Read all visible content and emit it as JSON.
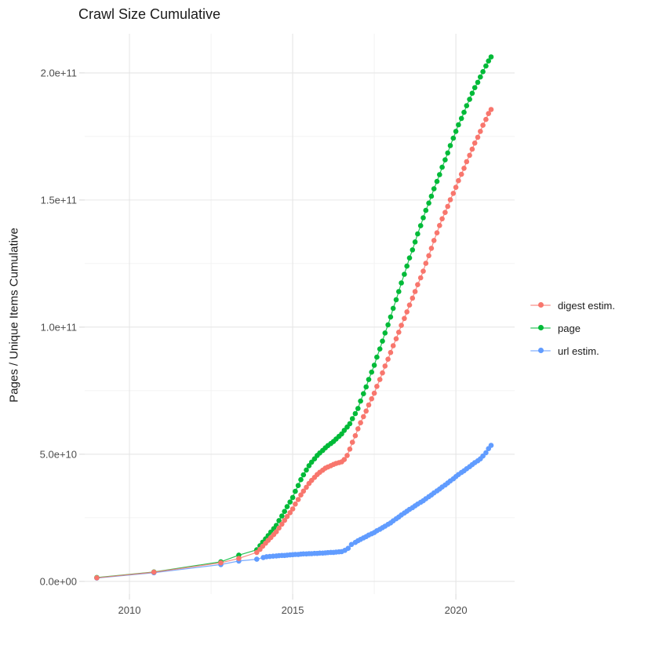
{
  "chart_data": {
    "type": "scatter",
    "title": "Crawl Size Cumulative",
    "xlabel": "",
    "ylabel": "Pages / Unique Items Cumulative",
    "legend_position": "right",
    "grid": true,
    "x_unit": "year",
    "value_scale": 1000000000.0,
    "xlim": [
      2008.63,
      2021.8
    ],
    "ylim": [
      -5,
      215.4
    ],
    "x_ticks": [
      {
        "value": 2010,
        "label": "2010"
      },
      {
        "value": 2015,
        "label": "2015"
      },
      {
        "value": 2020,
        "label": "2020"
      }
    ],
    "x_minor": [
      2012.5,
      2017.5
    ],
    "y_ticks": [
      {
        "value": 0,
        "label": "0.0e+00"
      },
      {
        "value": 50,
        "label": "5.0e+10"
      },
      {
        "value": 100,
        "label": "1.0e+11"
      },
      {
        "value": 150,
        "label": "1.5e+11"
      },
      {
        "value": 200,
        "label": "2.0e+11"
      }
    ],
    "y_minor": [
      25,
      75,
      125,
      175
    ],
    "series": [
      {
        "name": "digest estim.",
        "color": "#F8766D",
        "points": [
          [
            2009.0,
            1.4
          ],
          [
            2010.75,
            3.6
          ],
          [
            2012.8,
            7.3
          ],
          [
            2013.35,
            9.0
          ],
          [
            2013.9,
            11.4
          ],
          [
            2014.0,
            12.6
          ],
          [
            2014.08,
            13.8
          ],
          [
            2014.17,
            15.0
          ],
          [
            2014.25,
            16.1
          ],
          [
            2014.33,
            17.2
          ],
          [
            2014.42,
            18.4
          ],
          [
            2014.5,
            19.5
          ],
          [
            2014.58,
            21.0
          ],
          [
            2014.67,
            22.5
          ],
          [
            2014.75,
            24.0
          ],
          [
            2014.83,
            25.5
          ],
          [
            2014.92,
            27.0
          ],
          [
            2015.0,
            28.5
          ],
          [
            2015.08,
            30.4
          ],
          [
            2015.17,
            32.2
          ],
          [
            2015.25,
            34.0
          ],
          [
            2015.33,
            35.5
          ],
          [
            2015.42,
            37.0
          ],
          [
            2015.5,
            38.5
          ],
          [
            2015.58,
            39.7
          ],
          [
            2015.67,
            40.9
          ],
          [
            2015.75,
            42.0
          ],
          [
            2015.83,
            42.9
          ],
          [
            2015.92,
            43.7
          ],
          [
            2016.0,
            44.5
          ],
          [
            2016.08,
            45.0
          ],
          [
            2016.17,
            45.5
          ],
          [
            2016.25,
            46.0
          ],
          [
            2016.33,
            46.4
          ],
          [
            2016.42,
            46.7
          ],
          [
            2016.5,
            47.0
          ],
          [
            2016.58,
            47.9
          ],
          [
            2016.67,
            49.5
          ],
          [
            2016.75,
            52.0
          ],
          [
            2016.83,
            54.7
          ],
          [
            2016.92,
            57.3
          ],
          [
            2017.0,
            60.0
          ],
          [
            2017.08,
            62.4
          ],
          [
            2017.17,
            64.8
          ],
          [
            2017.25,
            67.0
          ],
          [
            2017.33,
            69.4
          ],
          [
            2017.42,
            71.8
          ],
          [
            2017.5,
            74.0
          ],
          [
            2017.58,
            76.7
          ],
          [
            2017.67,
            79.4
          ],
          [
            2017.75,
            82.0
          ],
          [
            2017.83,
            84.7
          ],
          [
            2017.92,
            87.4
          ],
          [
            2018.0,
            90.0
          ],
          [
            2018.08,
            92.7
          ],
          [
            2018.17,
            95.4
          ],
          [
            2018.25,
            98.0
          ],
          [
            2018.33,
            100.7
          ],
          [
            2018.42,
            103.4
          ],
          [
            2018.5,
            106.0
          ],
          [
            2018.58,
            108.7
          ],
          [
            2018.67,
            111.4
          ],
          [
            2018.75,
            114.0
          ],
          [
            2018.83,
            116.7
          ],
          [
            2018.92,
            119.4
          ],
          [
            2019.0,
            122.0
          ],
          [
            2019.08,
            125.1
          ],
          [
            2019.17,
            128.1
          ],
          [
            2019.25,
            131.0
          ],
          [
            2019.33,
            134.1
          ],
          [
            2019.42,
            137.1
          ],
          [
            2019.5,
            140.0
          ],
          [
            2019.58,
            142.6
          ],
          [
            2019.67,
            145.1
          ],
          [
            2019.75,
            147.5
          ],
          [
            2019.83,
            150.1
          ],
          [
            2019.92,
            152.6
          ],
          [
            2020.0,
            155.0
          ],
          [
            2020.08,
            157.6
          ],
          [
            2020.17,
            160.1
          ],
          [
            2020.25,
            162.5
          ],
          [
            2020.33,
            165.1
          ],
          [
            2020.42,
            167.6
          ],
          [
            2020.5,
            170.0
          ],
          [
            2020.58,
            172.4
          ],
          [
            2020.67,
            174.7
          ],
          [
            2020.75,
            177.0
          ],
          [
            2020.83,
            179.4
          ],
          [
            2020.92,
            181.7
          ],
          [
            2021.0,
            184.0
          ],
          [
            2021.08,
            185.6
          ]
        ]
      },
      {
        "name": "page",
        "color": "#00BA38",
        "points": [
          [
            2009.0,
            1.5
          ],
          [
            2010.75,
            3.7
          ],
          [
            2012.8,
            7.7
          ],
          [
            2013.35,
            10.3
          ],
          [
            2013.9,
            12.4
          ],
          [
            2014.0,
            14.0
          ],
          [
            2014.08,
            15.4
          ],
          [
            2014.17,
            16.7
          ],
          [
            2014.25,
            18.0
          ],
          [
            2014.33,
            19.4
          ],
          [
            2014.42,
            20.7
          ],
          [
            2014.5,
            22.0
          ],
          [
            2014.58,
            23.9
          ],
          [
            2014.67,
            25.7
          ],
          [
            2014.75,
            27.5
          ],
          [
            2014.83,
            29.4
          ],
          [
            2014.92,
            31.2
          ],
          [
            2015.0,
            33.0
          ],
          [
            2015.08,
            35.4
          ],
          [
            2015.17,
            37.7
          ],
          [
            2015.25,
            40.0
          ],
          [
            2015.33,
            41.9
          ],
          [
            2015.42,
            43.8
          ],
          [
            2015.5,
            45.5
          ],
          [
            2015.58,
            46.9
          ],
          [
            2015.67,
            48.2
          ],
          [
            2015.75,
            49.5
          ],
          [
            2015.83,
            50.5
          ],
          [
            2015.92,
            51.5
          ],
          [
            2016.0,
            52.5
          ],
          [
            2016.08,
            53.4
          ],
          [
            2016.17,
            54.2
          ],
          [
            2016.25,
            55.0
          ],
          [
            2016.33,
            56.0
          ],
          [
            2016.42,
            57.0
          ],
          [
            2016.5,
            58.0
          ],
          [
            2016.58,
            59.4
          ],
          [
            2016.67,
            60.7
          ],
          [
            2016.75,
            62.0
          ],
          [
            2016.83,
            64.0
          ],
          [
            2016.92,
            66.0
          ],
          [
            2017.0,
            68.0
          ],
          [
            2017.08,
            70.9
          ],
          [
            2017.17,
            73.8
          ],
          [
            2017.25,
            76.5
          ],
          [
            2017.33,
            79.4
          ],
          [
            2017.42,
            82.3
          ],
          [
            2017.5,
            85.0
          ],
          [
            2017.58,
            88.2
          ],
          [
            2017.67,
            91.4
          ],
          [
            2017.75,
            94.5
          ],
          [
            2017.83,
            97.7
          ],
          [
            2017.92,
            100.9
          ],
          [
            2018.0,
            104.0
          ],
          [
            2018.08,
            107.4
          ],
          [
            2018.17,
            110.8
          ],
          [
            2018.25,
            114.0
          ],
          [
            2018.33,
            117.4
          ],
          [
            2018.42,
            120.8
          ],
          [
            2018.5,
            124.0
          ],
          [
            2018.58,
            127.2
          ],
          [
            2018.67,
            130.4
          ],
          [
            2018.75,
            133.5
          ],
          [
            2018.83,
            136.7
          ],
          [
            2018.92,
            139.9
          ],
          [
            2019.0,
            143.0
          ],
          [
            2019.08,
            145.9
          ],
          [
            2019.17,
            148.8
          ],
          [
            2019.25,
            151.5
          ],
          [
            2019.33,
            154.4
          ],
          [
            2019.42,
            157.3
          ],
          [
            2019.5,
            160.0
          ],
          [
            2019.58,
            162.9
          ],
          [
            2019.67,
            165.8
          ],
          [
            2019.75,
            168.5
          ],
          [
            2019.83,
            171.4
          ],
          [
            2019.92,
            174.3
          ],
          [
            2020.0,
            177.0
          ],
          [
            2020.08,
            179.6
          ],
          [
            2020.17,
            182.1
          ],
          [
            2020.25,
            184.5
          ],
          [
            2020.33,
            187.1
          ],
          [
            2020.42,
            189.6
          ],
          [
            2020.5,
            192.0
          ],
          [
            2020.58,
            194.2
          ],
          [
            2020.67,
            196.3
          ],
          [
            2020.75,
            198.4
          ],
          [
            2020.83,
            200.5
          ],
          [
            2020.92,
            202.7
          ],
          [
            2021.0,
            204.7
          ],
          [
            2021.08,
            206.3
          ]
        ]
      },
      {
        "name": "url estim.",
        "color": "#619CFF",
        "points": [
          [
            2009.0,
            1.3
          ],
          [
            2010.75,
            3.4
          ],
          [
            2012.8,
            6.6
          ],
          [
            2013.35,
            8.0
          ],
          [
            2013.9,
            8.7
          ],
          [
            2014.1,
            9.4
          ],
          [
            2014.2,
            9.7
          ],
          [
            2014.3,
            9.8
          ],
          [
            2014.4,
            9.9
          ],
          [
            2014.5,
            10.0
          ],
          [
            2014.58,
            10.1
          ],
          [
            2014.67,
            10.2
          ],
          [
            2014.75,
            10.2
          ],
          [
            2014.83,
            10.3
          ],
          [
            2014.92,
            10.4
          ],
          [
            2015.0,
            10.5
          ],
          [
            2015.08,
            10.6
          ],
          [
            2015.17,
            10.6
          ],
          [
            2015.25,
            10.7
          ],
          [
            2015.33,
            10.8
          ],
          [
            2015.42,
            10.8
          ],
          [
            2015.5,
            10.9
          ],
          [
            2015.58,
            10.9
          ],
          [
            2015.67,
            11.0
          ],
          [
            2015.75,
            11.0
          ],
          [
            2015.83,
            11.1
          ],
          [
            2015.92,
            11.1
          ],
          [
            2016.0,
            11.2
          ],
          [
            2016.08,
            11.3
          ],
          [
            2016.17,
            11.4
          ],
          [
            2016.25,
            11.4
          ],
          [
            2016.33,
            11.5
          ],
          [
            2016.42,
            11.6
          ],
          [
            2016.5,
            11.7
          ],
          [
            2016.6,
            12.2
          ],
          [
            2016.7,
            13.0
          ],
          [
            2016.8,
            14.5
          ],
          [
            2016.92,
            15.3
          ],
          [
            2017.0,
            16.0
          ],
          [
            2017.08,
            16.5
          ],
          [
            2017.17,
            17.1
          ],
          [
            2017.25,
            17.6
          ],
          [
            2017.33,
            18.2
          ],
          [
            2017.42,
            18.7
          ],
          [
            2017.5,
            19.2
          ],
          [
            2017.58,
            19.9
          ],
          [
            2017.67,
            20.5
          ],
          [
            2017.75,
            21.1
          ],
          [
            2017.83,
            21.7
          ],
          [
            2017.92,
            22.4
          ],
          [
            2018.0,
            23.0
          ],
          [
            2018.08,
            23.8
          ],
          [
            2018.17,
            24.6
          ],
          [
            2018.25,
            25.3
          ],
          [
            2018.33,
            26.1
          ],
          [
            2018.42,
            26.9
          ],
          [
            2018.5,
            27.6
          ],
          [
            2018.58,
            28.3
          ],
          [
            2018.67,
            29.0
          ],
          [
            2018.75,
            29.7
          ],
          [
            2018.83,
            30.4
          ],
          [
            2018.92,
            31.1
          ],
          [
            2019.0,
            31.7
          ],
          [
            2019.08,
            32.5
          ],
          [
            2019.17,
            33.3
          ],
          [
            2019.25,
            34.0
          ],
          [
            2019.33,
            34.8
          ],
          [
            2019.42,
            35.6
          ],
          [
            2019.5,
            36.3
          ],
          [
            2019.58,
            37.1
          ],
          [
            2019.67,
            37.9
          ],
          [
            2019.75,
            38.7
          ],
          [
            2019.83,
            39.5
          ],
          [
            2019.92,
            40.3
          ],
          [
            2020.0,
            41.2
          ],
          [
            2020.08,
            42.0
          ],
          [
            2020.17,
            42.8
          ],
          [
            2020.25,
            43.5
          ],
          [
            2020.33,
            44.3
          ],
          [
            2020.42,
            45.1
          ],
          [
            2020.5,
            45.9
          ],
          [
            2020.58,
            46.7
          ],
          [
            2020.67,
            47.4
          ],
          [
            2020.75,
            48.2
          ],
          [
            2020.83,
            49.3
          ],
          [
            2020.92,
            50.6
          ],
          [
            2021.0,
            52.2
          ],
          [
            2021.08,
            53.5
          ]
        ]
      }
    ]
  }
}
